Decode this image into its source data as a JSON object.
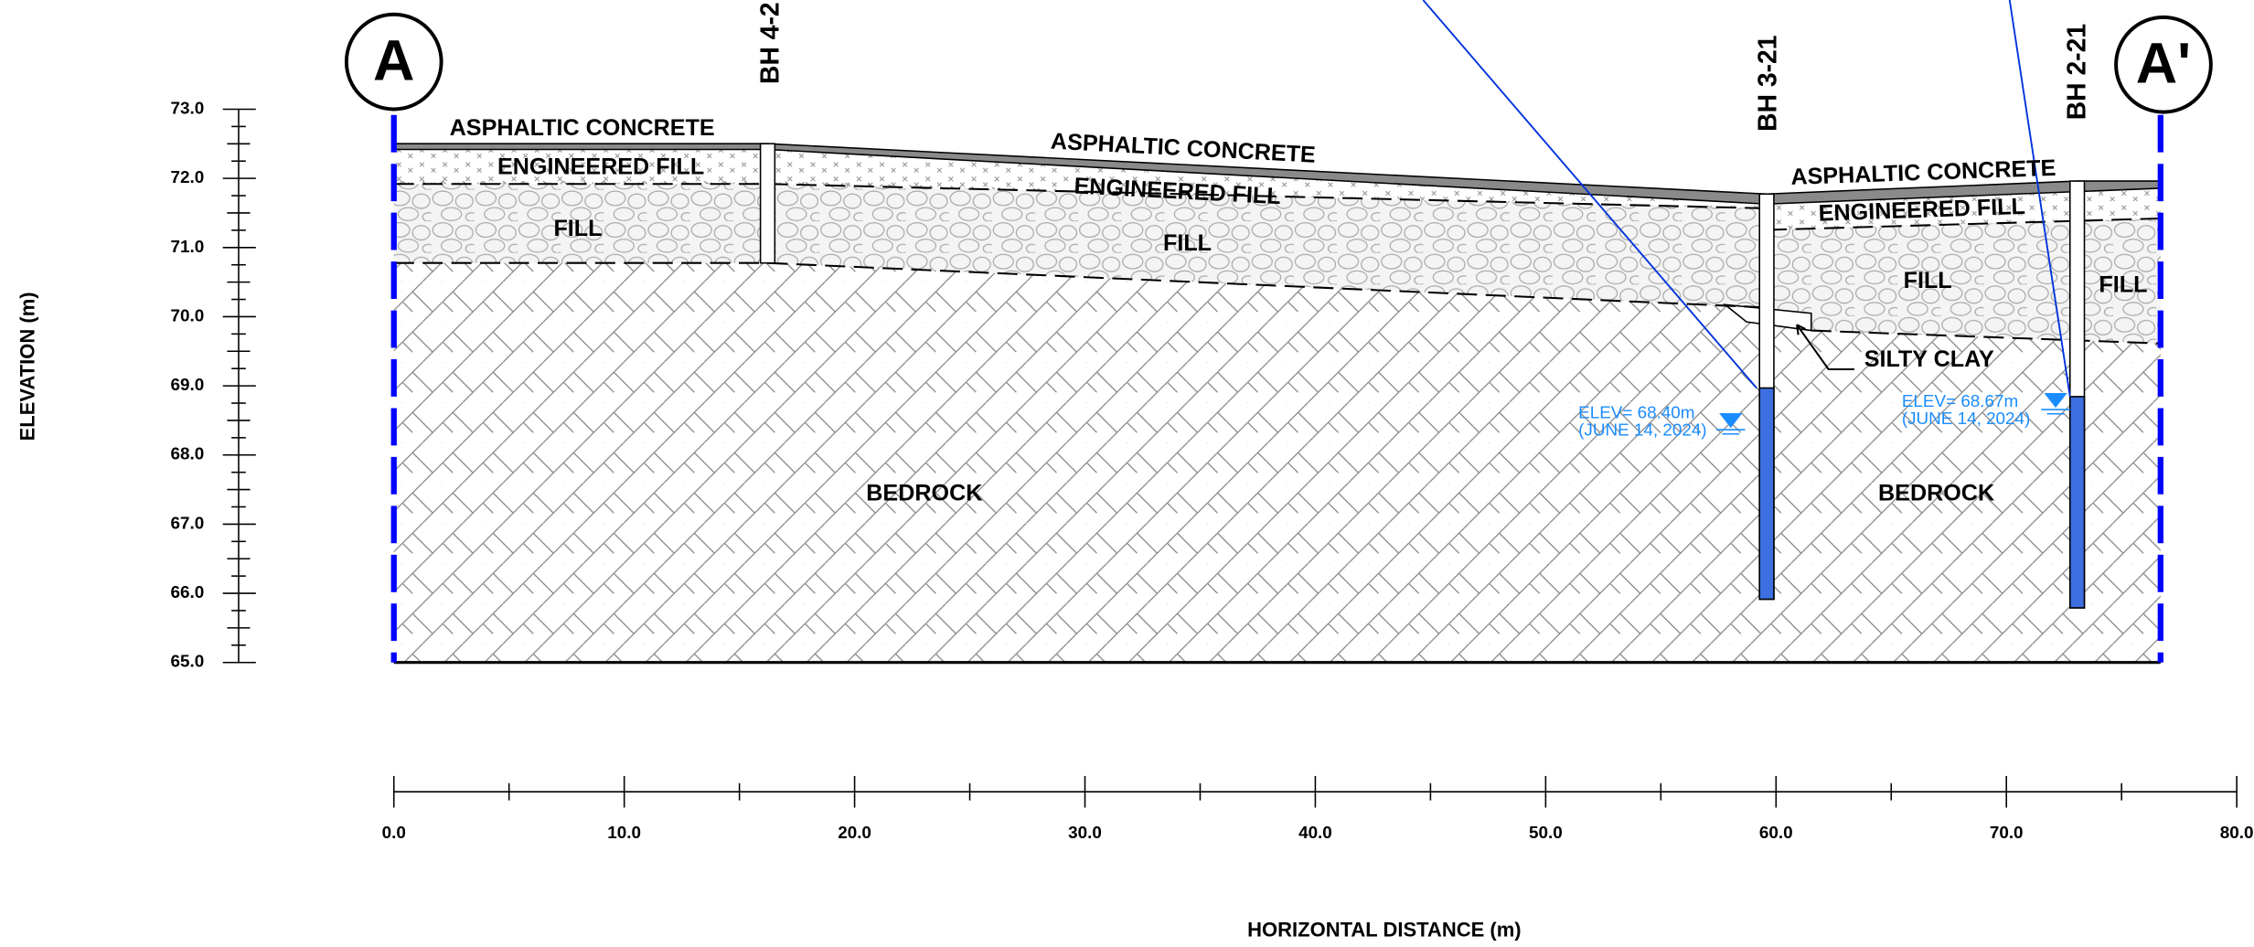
{
  "section": {
    "start": "A",
    "end": "A'"
  },
  "axes": {
    "y_label": "ELEVATION (m)",
    "y_ticks": [
      "73.0",
      "72.0",
      "71.0",
      "70.0",
      "69.0",
      "68.0",
      "67.0",
      "66.0",
      "65.0"
    ],
    "x_label": "HORIZONTAL DISTANCE (m)",
    "x_ticks": [
      "0.0",
      "10.0",
      "20.0",
      "30.0",
      "40.0",
      "50.0",
      "60.0",
      "70.0",
      "80.0"
    ]
  },
  "boreholes": [
    "BH 4-2",
    "BH 3-21",
    "BH 2-21"
  ],
  "layers": {
    "asphalt": [
      "ASPHALTIC CONCRETE",
      "ASPHALTIC CONCRETE",
      "ASPHALTIC CONCRETE"
    ],
    "engineered_fill": [
      "ENGINEERED FILL",
      "ENGINEERED FILL",
      "ENGINEERED FILL"
    ],
    "fill": [
      "FILL",
      "FILL",
      "FILL",
      "FILL"
    ],
    "silty_clay": "SILTY CLAY",
    "bedrock": [
      "BEDROCK",
      "BEDROCK"
    ]
  },
  "water_levels": [
    {
      "elevation": "ELEV= 68.40m",
      "date": "(JUNE 14, 2024)"
    },
    {
      "elevation": "ELEV= 68.67m",
      "date": "(JUNE 14, 2024)"
    }
  ]
}
